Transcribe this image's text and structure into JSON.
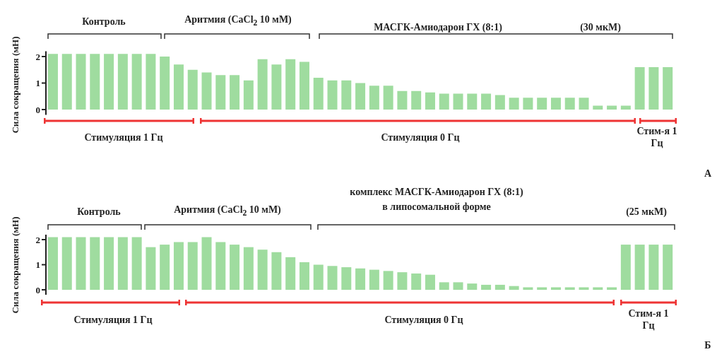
{
  "chart_data": [
    {
      "type": "bar",
      "ylabel": "Сила сокращения (мН)",
      "ylim": [
        -0.2,
        2.2
      ],
      "yticks": [
        0,
        1,
        2
      ],
      "tick_labels": "y",
      "categories": [
        null,
        null,
        null,
        null,
        null,
        null,
        null,
        null,
        null,
        null,
        null,
        null,
        null,
        null,
        null,
        null,
        null,
        null,
        null,
        null,
        null,
        null,
        null,
        null,
        null,
        null,
        null,
        null,
        null,
        null,
        null,
        null,
        null,
        null,
        null,
        null,
        null,
        null,
        null,
        null,
        null,
        null,
        null,
        null,
        null
      ],
      "series": [
        {
          "type": "bar",
          "color": "#9fdc9f",
          "values": [
            2.1,
            2.1,
            2.1,
            2.1,
            2.1,
            2.1,
            2.1,
            2.1,
            2.0,
            1.7,
            1.5,
            1.4,
            1.3,
            1.3,
            1.1,
            1.9,
            1.7,
            1.9,
            1.8,
            1.2,
            1.1,
            1.1,
            1.0,
            0.9,
            0.9,
            0.7,
            0.7,
            0.65,
            0.6,
            0.6,
            0.6,
            0.6,
            0.55,
            0.45,
            0.45,
            0.45,
            0.45,
            0.45,
            0.45,
            0.15,
            0.15,
            0.15,
            1.6,
            1.6,
            1.6
          ]
        }
      ],
      "annotations": [
        "Контроль",
        "Аритмия (CaCl$_{2}$ 10 мМ)",
        "МАСГК-Амиодарон ГХ (8:1)",
        "(30 мкМ)",
        "Стимуляция 1 Гц",
        "Стимуляция 0 Гц",
        "Стим-я 1 Гц",
        "А"
      ]
    },
    {
      "type": "bar",
      "ylabel": "Сила сокращения (мН)",
      "ylim": [
        -0.2,
        2.2
      ],
      "yticks": [
        0,
        1,
        2
      ],
      "tick_labels": "y",
      "categories": [
        null,
        null,
        null,
        null,
        null,
        null,
        null,
        null,
        null,
        null,
        null,
        null,
        null,
        null,
        null,
        null,
        null,
        null,
        null,
        null,
        null,
        null,
        null,
        null,
        null,
        null,
        null,
        null,
        null,
        null,
        null,
        null,
        null,
        null,
        null,
        null,
        null,
        null,
        null,
        null,
        null,
        null,
        null,
        null,
        null
      ],
      "series": [
        {
          "type": "bar",
          "color": "#9fdc9f",
          "values": [
            2.1,
            2.1,
            2.1,
            2.1,
            2.1,
            2.1,
            2.1,
            1.7,
            1.8,
            1.9,
            1.9,
            2.1,
            1.9,
            1.8,
            1.7,
            1.6,
            1.5,
            1.3,
            1.1,
            1.0,
            0.95,
            0.9,
            0.85,
            0.8,
            0.75,
            0.7,
            0.65,
            0.6,
            0.3,
            0.3,
            0.25,
            0.2,
            0.2,
            0.15,
            0.1,
            0.1,
            0.1,
            0.1,
            0.1,
            0.1,
            0.1,
            1.8,
            1.8,
            1.8,
            1.8
          ]
        }
      ],
      "annotations": [
        "Контроль",
        "Аритмия (CaCl$_{2}$ 10 мМ)",
        "комплекс МАСГК-Амиодарон ГХ (8:1)",
        "в  липосомальной форме",
        "(25 мкМ)",
        "Стимуляция 1 Гц",
        "Стимуляция 0 Гц",
        "Стим-я 1 Гц",
        "Б"
      ]
    }
  ]
}
